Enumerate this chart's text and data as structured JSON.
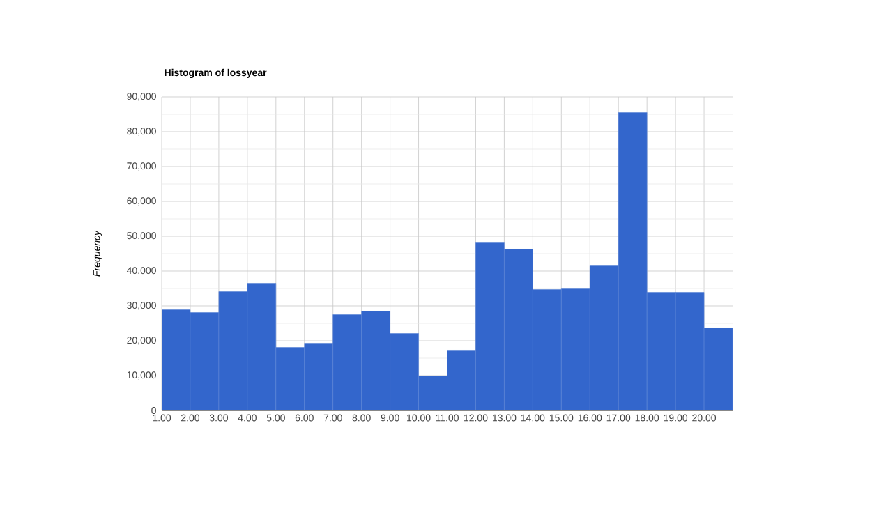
{
  "chart_data": {
    "type": "histogram",
    "title": "Histogram of lossyear",
    "ylabel": "Frequency",
    "bins": [
      1,
      2,
      3,
      4,
      5,
      6,
      7,
      8,
      9,
      10,
      11,
      12,
      13,
      14,
      15,
      16,
      17,
      18,
      19,
      20,
      21
    ],
    "values": [
      28900,
      28100,
      34100,
      36500,
      18100,
      19300,
      27500,
      28500,
      22100,
      9900,
      17300,
      48300,
      46300,
      34700,
      34900,
      41500,
      85500,
      33900,
      33900,
      23700
    ],
    "color": "#3366cc",
    "xlim": [
      1,
      21
    ],
    "xticks": [
      {
        "value": 1,
        "label": "1.00"
      },
      {
        "value": 2,
        "label": "2.00"
      },
      {
        "value": 3,
        "label": "3.00"
      },
      {
        "value": 4,
        "label": "4.00"
      },
      {
        "value": 5,
        "label": "5.00"
      },
      {
        "value": 6,
        "label": "6.00"
      },
      {
        "value": 7,
        "label": "7.00"
      },
      {
        "value": 8,
        "label": "8.00"
      },
      {
        "value": 9,
        "label": "9.00"
      },
      {
        "value": 10,
        "label": "10.00"
      },
      {
        "value": 11,
        "label": "11.00"
      },
      {
        "value": 12,
        "label": "12.00"
      },
      {
        "value": 13,
        "label": "13.00"
      },
      {
        "value": 14,
        "label": "14.00"
      },
      {
        "value": 15,
        "label": "15.00"
      },
      {
        "value": 16,
        "label": "16.00"
      },
      {
        "value": 17,
        "label": "17.00"
      },
      {
        "value": 18,
        "label": "18.00"
      },
      {
        "value": 19,
        "label": "19.00"
      },
      {
        "value": 20,
        "label": "20.00"
      }
    ],
    "ylim": [
      0,
      90000
    ],
    "yticks": [
      {
        "value": 0,
        "label": "0"
      },
      {
        "value": 10000,
        "label": "10,000"
      },
      {
        "value": 20000,
        "label": "20,000"
      },
      {
        "value": 30000,
        "label": "30,000"
      },
      {
        "value": 40000,
        "label": "40,000"
      },
      {
        "value": 50000,
        "label": "50,000"
      },
      {
        "value": 60000,
        "label": "60,000"
      },
      {
        "value": 70000,
        "label": "70,000"
      },
      {
        "value": 80000,
        "label": "80,000"
      },
      {
        "value": 90000,
        "label": "90,000"
      }
    ],
    "grid": true
  }
}
